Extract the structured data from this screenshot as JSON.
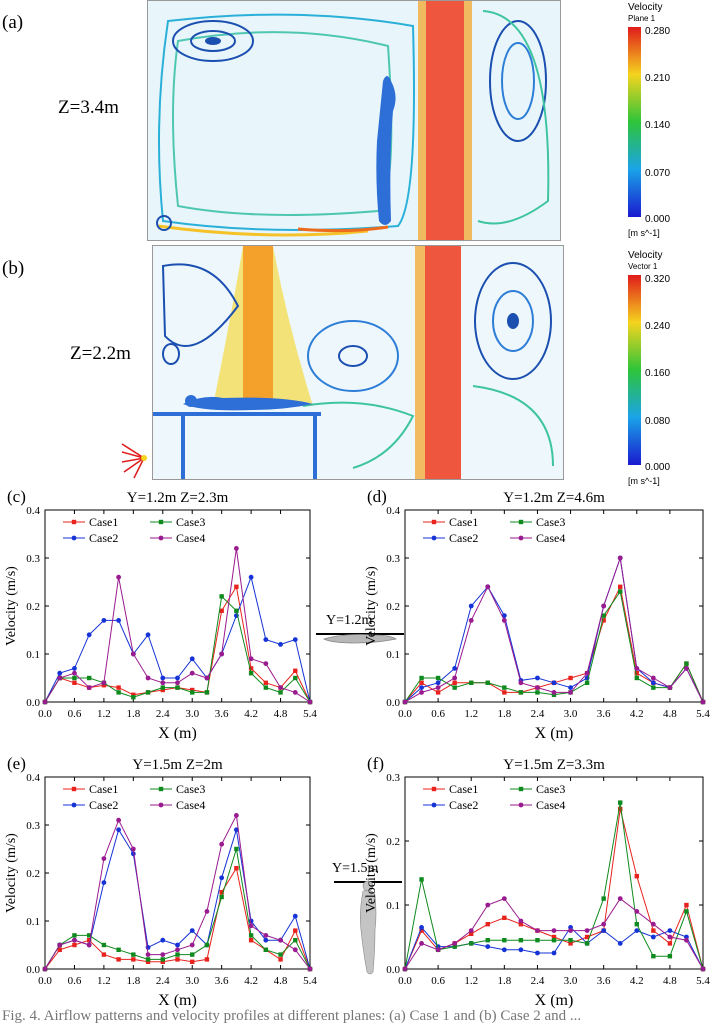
{
  "contours": [
    {
      "panel_label": "(a)",
      "plane_label": "Z=3.4m",
      "legend": {
        "title": "Velocity",
        "subtitle": "Plane 1",
        "ticks": [
          "0.280",
          "0.210",
          "0.140",
          "0.070",
          "0.000"
        ],
        "unit": "[m s^-1]"
      }
    },
    {
      "panel_label": "(b)",
      "plane_label": "Z=2.2m",
      "legend": {
        "title": "Velocity",
        "subtitle": "Vector 1",
        "ticks": [
          "0.320",
          "0.240",
          "0.160",
          "0.080",
          "0.000"
        ],
        "unit": "[m s^-1]"
      }
    }
  ],
  "insets": {
    "lying_label": "Y=1.2m",
    "standing_label": "Y=1.5m"
  },
  "caption": "Fig. 4. Airflow patterns and velocity profiles at different planes: (a) Case 1 and (b) Case 2 and ...",
  "colors": {
    "case1": "#e8221c",
    "case2": "#1533d6",
    "case3": "#0f8a1e",
    "case4": "#9a1a8f"
  },
  "chart_data": [
    {
      "panel": "(c)",
      "type": "line",
      "title": "Y=1.2m Z=2.3m",
      "xlabel": "X (m)",
      "ylabel": "Velocity (m/s)",
      "xlim": [
        0,
        5.4
      ],
      "ylim": [
        0,
        0.4
      ],
      "xticks": [
        "0.0",
        "0.6",
        "1.2",
        "1.8",
        "2.4",
        "3.0",
        "3.6",
        "4.2",
        "4.8",
        "5.4"
      ],
      "yticks": [
        "0.0",
        "0.1",
        "0.2",
        "0.3",
        "0.4"
      ],
      "x": [
        0,
        0.3,
        0.6,
        0.9,
        1.2,
        1.5,
        1.8,
        2.1,
        2.4,
        2.7,
        3.0,
        3.3,
        3.6,
        3.9,
        4.2,
        4.5,
        4.8,
        5.1,
        5.4
      ],
      "series": [
        {
          "name": "Case1",
          "values": [
            0,
            0.05,
            0.04,
            0.03,
            0.035,
            0.03,
            0.015,
            0.02,
            0.025,
            0.03,
            0.025,
            0.02,
            0.19,
            0.24,
            0.07,
            0.04,
            0.03,
            0.065,
            0
          ]
        },
        {
          "name": "Case2",
          "values": [
            0,
            0.06,
            0.07,
            0.14,
            0.17,
            0.17,
            0.1,
            0.14,
            0.05,
            0.05,
            0.09,
            0.05,
            0.1,
            0.18,
            0.26,
            0.13,
            0.12,
            0.13,
            0
          ]
        },
        {
          "name": "Case3",
          "values": [
            0,
            0.05,
            0.05,
            0.05,
            0.04,
            0.02,
            0.01,
            0.02,
            0.03,
            0.03,
            0.02,
            0.02,
            0.22,
            0.19,
            0.06,
            0.03,
            0.02,
            0.05,
            0
          ]
        },
        {
          "name": "Case4",
          "values": [
            0,
            0.05,
            0.06,
            0.03,
            0.04,
            0.26,
            0.1,
            0.05,
            0.04,
            0.04,
            0.06,
            0.05,
            0.1,
            0.32,
            0.09,
            0.08,
            0.03,
            0.02,
            0
          ]
        }
      ]
    },
    {
      "panel": "(d)",
      "type": "line",
      "title": "Y=1.2m Z=4.6m",
      "xlabel": "X (m)",
      "ylabel": "Velocity (m/s)",
      "xlim": [
        0,
        5.4
      ],
      "ylim": [
        0,
        0.4
      ],
      "xticks": [
        "0.0",
        "0.6",
        "1.2",
        "1.8",
        "2.4",
        "3.0",
        "3.6",
        "4.2",
        "4.8",
        "5.4"
      ],
      "yticks": [
        "0.0",
        "0.1",
        "0.2",
        "0.3",
        "0.4"
      ],
      "x": [
        0,
        0.3,
        0.6,
        0.9,
        1.2,
        1.5,
        1.8,
        2.1,
        2.4,
        2.7,
        3.0,
        3.3,
        3.6,
        3.9,
        4.2,
        4.5,
        4.8,
        5.1,
        5.4
      ],
      "series": [
        {
          "name": "Case1",
          "values": [
            0,
            0.04,
            0.02,
            0.04,
            0.04,
            0.04,
            0.02,
            0.02,
            0.03,
            0.04,
            0.05,
            0.06,
            0.17,
            0.24,
            0.06,
            0.04,
            0.03,
            0.08,
            0
          ]
        },
        {
          "name": "Case2",
          "values": [
            0,
            0.03,
            0.04,
            0.07,
            0.2,
            0.24,
            0.18,
            0.045,
            0.05,
            0.04,
            0.03,
            0.05,
            0.2,
            0.3,
            0.07,
            0.04,
            0.03,
            0.07,
            0
          ]
        },
        {
          "name": "Case3",
          "values": [
            0,
            0.05,
            0.05,
            0.03,
            0.04,
            0.04,
            0.03,
            0.02,
            0.02,
            0.015,
            0.02,
            0.04,
            0.18,
            0.23,
            0.05,
            0.03,
            0.03,
            0.08,
            0
          ]
        },
        {
          "name": "Case4",
          "values": [
            0,
            0.02,
            0.03,
            0.05,
            0.17,
            0.24,
            0.17,
            0.04,
            0.03,
            0.02,
            0.02,
            0.06,
            0.2,
            0.3,
            0.07,
            0.05,
            0.03,
            0.07,
            0
          ]
        }
      ]
    },
    {
      "panel": "(e)",
      "type": "line",
      "title": "Y=1.5m Z=2m",
      "xlabel": "X (m)",
      "ylabel": "Velocity (m/s)",
      "xlim": [
        0,
        5.4
      ],
      "ylim": [
        0,
        0.4
      ],
      "xticks": [
        "0.0",
        "0.6",
        "1.2",
        "1.8",
        "2.4",
        "3.0",
        "3.6",
        "4.2",
        "4.8",
        "5.4"
      ],
      "yticks": [
        "0.0",
        "0.1",
        "0.2",
        "0.3",
        "0.4"
      ],
      "x": [
        0,
        0.3,
        0.6,
        0.9,
        1.2,
        1.5,
        1.8,
        2.1,
        2.4,
        2.7,
        3.0,
        3.3,
        3.6,
        3.9,
        4.2,
        4.5,
        4.8,
        5.1,
        5.4
      ],
      "series": [
        {
          "name": "Case1",
          "values": [
            0,
            0.04,
            0.05,
            0.06,
            0.03,
            0.02,
            0.02,
            0.015,
            0.015,
            0.02,
            0.015,
            0.02,
            0.16,
            0.21,
            0.06,
            0.04,
            0.02,
            0.08,
            0
          ]
        },
        {
          "name": "Case2",
          "values": [
            0,
            0.05,
            0.06,
            0.05,
            0.18,
            0.29,
            0.24,
            0.045,
            0.06,
            0.05,
            0.08,
            0.05,
            0.19,
            0.29,
            0.1,
            0.06,
            0.06,
            0.11,
            0
          ]
        },
        {
          "name": "Case3",
          "values": [
            0,
            0.05,
            0.07,
            0.07,
            0.05,
            0.04,
            0.03,
            0.02,
            0.02,
            0.03,
            0.03,
            0.05,
            0.15,
            0.25,
            0.07,
            0.04,
            0.03,
            0.06,
            0
          ]
        },
        {
          "name": "Case4",
          "values": [
            0,
            0.05,
            0.06,
            0.05,
            0.23,
            0.31,
            0.25,
            0.03,
            0.03,
            0.04,
            0.05,
            0.12,
            0.26,
            0.32,
            0.09,
            0.07,
            0.06,
            0.04,
            0
          ]
        }
      ]
    },
    {
      "panel": "(f)",
      "type": "line",
      "title": "Y=1.5m Z=3.3m",
      "xlabel": "X (m)",
      "ylabel": "Velocity (m/s)",
      "xlim": [
        0,
        5.4
      ],
      "ylim": [
        0,
        0.3
      ],
      "xticks": [
        "0.0",
        "0.6",
        "1.2",
        "1.8",
        "2.4",
        "3.0",
        "3.6",
        "4.2",
        "4.8",
        "5.4"
      ],
      "yticks": [
        "0.0",
        "0.1",
        "0.2",
        "0.3"
      ],
      "x": [
        0,
        0.3,
        0.6,
        0.9,
        1.2,
        1.5,
        1.8,
        2.1,
        2.4,
        2.7,
        3.0,
        3.3,
        3.6,
        3.9,
        4.2,
        4.5,
        4.8,
        5.1,
        5.4
      ],
      "series": [
        {
          "name": "Case1",
          "values": [
            0,
            0.06,
            0.03,
            0.04,
            0.055,
            0.07,
            0.08,
            0.07,
            0.06,
            0.05,
            0.04,
            0.05,
            0.06,
            0.25,
            0.145,
            0.06,
            0.04,
            0.1,
            0
          ]
        },
        {
          "name": "Case2",
          "values": [
            0,
            0.065,
            0.035,
            0.035,
            0.04,
            0.035,
            0.03,
            0.03,
            0.025,
            0.025,
            0.065,
            0.04,
            0.06,
            0.04,
            0.06,
            0.05,
            0.06,
            0.05,
            0
          ]
        },
        {
          "name": "Case3",
          "values": [
            0,
            0.14,
            0.03,
            0.035,
            0.04,
            0.045,
            0.045,
            0.045,
            0.045,
            0.045,
            0.045,
            0.04,
            0.11,
            0.26,
            0.07,
            0.02,
            0.02,
            0.09,
            0
          ]
        },
        {
          "name": "Case4",
          "values": [
            0,
            0.04,
            0.03,
            0.04,
            0.06,
            0.1,
            0.11,
            0.075,
            0.06,
            0.06,
            0.06,
            0.06,
            0.07,
            0.11,
            0.09,
            0.07,
            0.05,
            0.045,
            0
          ]
        }
      ]
    }
  ]
}
